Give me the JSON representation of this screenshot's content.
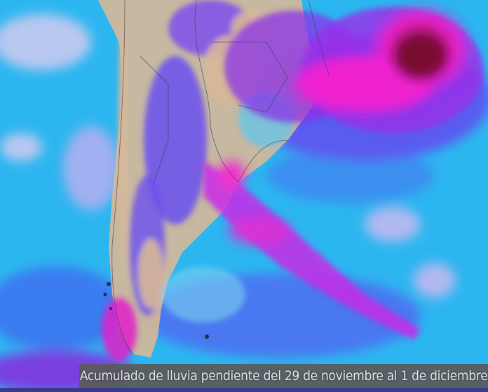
{
  "map": {
    "type": "precipitation-accumulation",
    "region": "Southern South America",
    "colors": {
      "ocean_low": "#28b8f0",
      "medium": "#5a6cf0",
      "high": "#9a30e8",
      "very_high": "#f020d0",
      "extreme": "#901040",
      "land_dry": "#d8b898"
    }
  },
  "caption": "Acumulado de lluvia pendiente del 29 de noviembre al 1 de diciembre"
}
